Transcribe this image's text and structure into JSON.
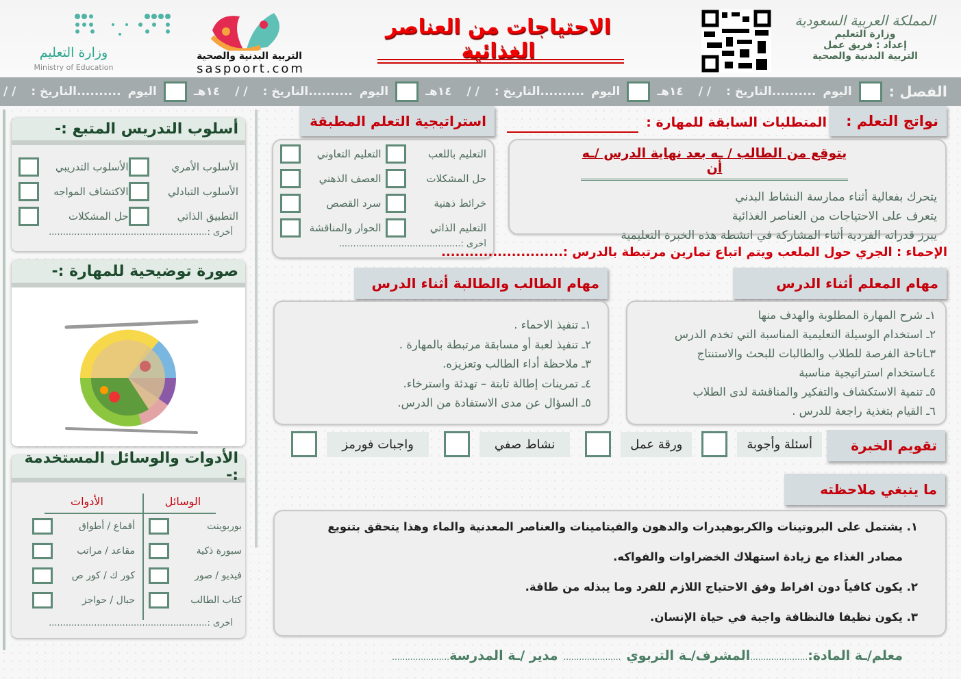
{
  "header": {
    "kingdom": "المملكة العربية السعودية",
    "ministry": "وزارة التعليم",
    "prepared_by": "إعداد : فريق عمل",
    "department": "التربية البدنية والصحية",
    "title": "الاحتياجات من العناصر الغذائية",
    "site_logo_text": "التربية البدنية والصحية",
    "site_url": "saspoort.com",
    "moe_logo_ar": "وزارة التعليم",
    "moe_logo_en": "Ministry of Education",
    "qr_icon": "qr-code"
  },
  "date_bar": {
    "class_label": "الفصل :",
    "day_label": "اليوم",
    "date_label": "..........التاريخ :",
    "date_slashes": "/   /",
    "hijri_suffix": "١٤هـ",
    "groups": 3
  },
  "outcomes": {
    "header": "نواتج التعلم  :",
    "prereq_label": "المتطلبات السابقة للمهارة :",
    "intro": "يتوقع من الطالب / ـه بعد نهاية الدرس /ـه أن",
    "items": [
      "يتحرك بفعالية أثناء ممارسة النشاط البدني",
      "يتعرف على الاحتياجات من العناصر الغذائية",
      "يبرز قدراته الفردية أثناء المشاركة في انشطة هذه الخبرة التعليمية"
    ]
  },
  "strategy": {
    "header": "استراتيجية التعلم المطبقة",
    "items": [
      "التعليم باللعب",
      "التعليم التعاوني",
      "حل المشكلات",
      "العصف الذهني",
      "خرائط ذهنية",
      "سرد القصص",
      "التعليم الذاتي",
      "الحوار والمناقشة"
    ],
    "other": "أخرى :..........................................."
  },
  "warmup": {
    "text": "الإحماء : الجري حول الملعب ويتم اتباع تمارين مرتبطة بالدرس :.........................."
  },
  "teacher_tasks": {
    "header": "مهام المعلم أثناء الدرس",
    "items": [
      "١ـ شرح المهارة المطلوبة والهدف منها",
      "٢ـ استخدام الوسيلة التعليمية المناسبة التي تخدم الدرس",
      "٣ـاتاحة الفرصة للطلاب والطالبات للبحث والاستنتاج",
      "٤ـاستخدام استراتيجية مناسبة",
      "٥ـ تنمية الاستكشاف والتفكير والمناقشة لدى الطلاب",
      "٦ـ القيام بتغذية راجعة للدرس ."
    ]
  },
  "student_tasks": {
    "header": "مهام الطالب والطالبة أثناء الدرس",
    "items": [
      "١ـ تنفيذ الاحماء .",
      "٢ـ تنفيذ لعبة أو مسابقة مرتبطة بالمهارة .",
      "٣ـ ملاحظة أداء الطالب وتعزيزه.",
      "٤ـ تمرينات إطالة ثابتة – تهدئة واسترخاء.",
      "٥ـ السؤال عن مدى الاستفادة من الدرس."
    ]
  },
  "evaluation": {
    "header": "تقويم الخبرة",
    "items": [
      "أسئلة وأجوبة",
      "ورقة عمل",
      "نشاط صفي",
      "واجبات فورمز"
    ]
  },
  "notes": {
    "header": "ما ينبغي ملاحظته",
    "items": [
      "١.   يشتمل على البروتينات والكربوهيدرات والدهون والفيتامينات والعناصر المعدنية والماء وهذا يتحقق بتنويع",
      "مصادر الغذاء مع زيادة استهلاك الخضراوات والفواكه.",
      "٢.   يكون كافياً دون افراط وفق الاحتياج اللازم للفرد وما يبذله من طاقة.",
      "٣.   يكون نظيفا فالنظافة واجبة في حياة الإنسان."
    ]
  },
  "signatures": {
    "teacher": "معلم/ـة المادة:",
    "supervisor": "المشرف/ـة التربوي",
    "principal": "مدير /ـة المدرسة",
    "dots": "......................"
  },
  "teaching_style": {
    "header": "أسلوب التدريس المتبع :-",
    "items": [
      "الأسلوب الأمري",
      "الأسلوب التدريبي",
      "الأسلوب التبادلي",
      "الاكتشاف المواجه",
      "التطبيق الذاتي",
      "حل المشكلات"
    ],
    "other": "أخرى :........................................................"
  },
  "illustration": {
    "header": "صورة توضيحية للمهارة :-",
    "image_icon": "healthy-plate"
  },
  "tools": {
    "header": "الأدوات  والوسائل المستخدمة :-",
    "media_header": "الوسائل",
    "tools_header": "الأدوات",
    "media": [
      "بوربوينت",
      "سبورة ذكية",
      "فيديو / صور",
      "كتاب الطالب"
    ],
    "tools": [
      "أقماع / أطواق",
      "مقاعد / مراتب",
      "كور ك / كور ص",
      "حبال / حواجز"
    ],
    "other": "أخرى :........................................................"
  },
  "colors": {
    "red": "#c5000b",
    "green": "#1d4a2c",
    "bar": "#a3abad",
    "text": "#4f6b5d"
  }
}
